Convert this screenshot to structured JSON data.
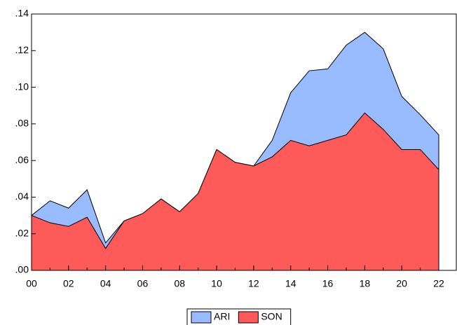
{
  "chart_data": {
    "type": "area",
    "categories": [
      "00",
      null,
      "02",
      null,
      "04",
      null,
      "06",
      null,
      "08",
      null,
      "10",
      null,
      "12",
      null,
      "14",
      null,
      "16",
      null,
      "18",
      null,
      "20",
      null,
      "22"
    ],
    "series": [
      {
        "name": "ARI",
        "color": "#99bbff",
        "values": [
          0.03,
          0.038,
          0.034,
          0.044,
          0.015,
          0.027,
          0.031,
          0.039,
          0.032,
          0.042,
          0.066,
          0.059,
          0.057,
          0.071,
          0.097,
          0.109,
          0.11,
          0.123,
          0.13,
          0.121,
          0.095,
          0.085,
          0.074
        ]
      },
      {
        "name": "SON",
        "color": "#ff5a5a",
        "values": [
          0.03,
          0.026,
          0.024,
          0.029,
          0.012,
          0.027,
          0.031,
          0.039,
          0.032,
          0.042,
          0.066,
          0.059,
          0.057,
          0.062,
          0.071,
          0.068,
          0.071,
          0.074,
          0.086,
          0.077,
          0.066,
          0.066,
          0.055
        ]
      }
    ],
    "ylim": [
      0,
      0.14
    ],
    "yticks": [
      {
        "value": 0,
        "label": ".00"
      },
      {
        "value": 0.02,
        "label": ".02"
      },
      {
        "value": 0.04,
        "label": ".04"
      },
      {
        "value": 0.06,
        "label": ".06"
      },
      {
        "value": 0.08,
        "label": ".08"
      },
      {
        "value": 0.1,
        "label": ".10"
      },
      {
        "value": 0.12,
        "label": ".12"
      },
      {
        "value": 0.14,
        "label": ".14"
      }
    ],
    "legend": "bottom"
  }
}
